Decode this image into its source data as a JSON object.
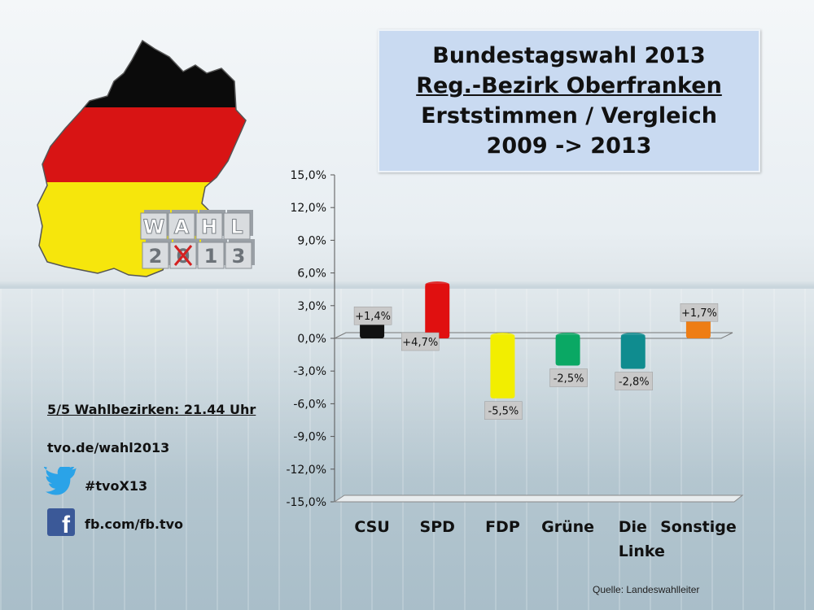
{
  "title": {
    "line1": "Bundestagswahl 2013",
    "line2": "Reg.-Bezirk Oberfranken",
    "line3": "Erststimmen / Vergleich",
    "line4": "2009 -> 2013"
  },
  "logo": {
    "wahl_letters": [
      "W",
      "A",
      "H",
      "L"
    ],
    "year_digits": [
      "2",
      "0",
      "1",
      "3"
    ]
  },
  "info": {
    "status": "5/5 Wahlbezirken: 21.44 Uhr",
    "website": "tvo.de/wahl2013",
    "twitter": "#tvoX13",
    "facebook": "fb.com/fb.tvo"
  },
  "icons": {
    "twitter": "twitter-bird-icon",
    "facebook": "facebook-f-icon"
  },
  "source": "Quelle: Landeswahlleiter",
  "chart_data": {
    "type": "bar",
    "categories": [
      "CSU",
      "SPD",
      "FDP",
      "Grüne",
      "Die Linke",
      "Sonstige"
    ],
    "category_lines": [
      [
        "CSU"
      ],
      [
        "SPD"
      ],
      [
        "FDP"
      ],
      [
        "Grüne"
      ],
      [
        "Die",
        "Linke"
      ],
      [
        "Sonstige"
      ]
    ],
    "values": [
      1.4,
      4.7,
      -5.5,
      -2.5,
      -2.8,
      1.7
    ],
    "value_labels": [
      "+1,4%",
      "+4,7%",
      "-5,5%",
      "-2,5%",
      "-2,8%",
      "+1,7%"
    ],
    "colors": [
      "#111111",
      "#e01010",
      "#f2ee00",
      "#0aa864",
      "#0f8c8f",
      "#ee7d14"
    ],
    "ylim": [
      -15,
      15
    ],
    "yticks": [
      15,
      12,
      9,
      6,
      3,
      0,
      -3,
      -6,
      -9,
      -12,
      -15
    ],
    "ytick_labels": [
      "15,0%",
      "12,0%",
      "9,0%",
      "6,0%",
      "3,0%",
      "0,0%",
      "-3,0%",
      "-6,0%",
      "-9,0%",
      "-12,0%",
      "-15,0%"
    ],
    "grid": false
  }
}
